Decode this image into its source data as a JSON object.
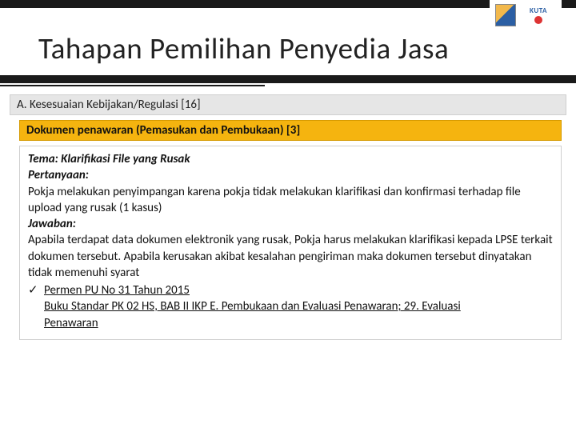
{
  "logos": {
    "right_text": "KUTA"
  },
  "title": "Tahapan Pemilihan Penyedia Jasa",
  "section_a": "A. Kesesuaian Kebijakan/Regulasi [16]",
  "section_b": "Dokumen penawaran (Pemasukan dan Pembukaan) [3]",
  "content": {
    "tema_label": "Tema: ",
    "tema_value": "Klarifikasi File yang Rusak",
    "pertanyaan_label": "Pertanyaan:",
    "pertanyaan_body": "Pokja melakukan penyimpangan karena pokja tidak melakukan klarifikasi dan konfirmasi terhadap file upload  yang rusak (1 kasus)",
    "jawaban_label": "Jawaban:",
    "jawaban_body": "Apabila terdapat data dokumen elektronik yang rusak, Pokja harus melakukan klarifikasi kepada  LPSE terkait dokumen tersebut. Apabila kerusakan akibat kesalahan pengiriman maka dokumen tersebut dinyatakan tidak memenuhi syarat",
    "ref1": "Permen PU No 31 Tahun 2015",
    "ref2a": "Buku Standar PK 02 HS, BAB II IKP E. Pembukaan dan Evaluasi Penawaran; 29. Evaluasi",
    "ref2b": "Penawaran"
  },
  "colors": {
    "topbar": "#1a1a1a",
    "section_a_bg": "#e6e6e6",
    "section_b_bg": "#f5b40f",
    "border": "#cfcfcf",
    "text": "#111111"
  },
  "typography": {
    "title_fontsize": 37,
    "section_fontsize": 15,
    "body_fontsize": 15
  }
}
